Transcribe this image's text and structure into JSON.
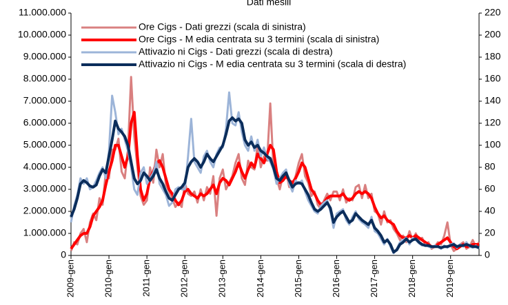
{
  "chart_data": {
    "type": "line",
    "title": "Dati mesili",
    "categories": [
      "2009-gen",
      null,
      null,
      null,
      null,
      null,
      null,
      null,
      null,
      null,
      null,
      null,
      "2010-gen",
      null,
      null,
      null,
      null,
      null,
      null,
      null,
      null,
      null,
      null,
      null,
      "2011-gen",
      null,
      null,
      null,
      null,
      null,
      null,
      null,
      null,
      null,
      null,
      null,
      "2012-gen",
      null,
      null,
      null,
      null,
      null,
      null,
      null,
      null,
      null,
      null,
      null,
      "2013-gen",
      null,
      null,
      null,
      null,
      null,
      null,
      null,
      null,
      null,
      null,
      null,
      "2014-gen",
      null,
      null,
      null,
      null,
      null,
      null,
      null,
      null,
      null,
      null,
      null,
      "2015-gen",
      null,
      null,
      null,
      null,
      null,
      null,
      null,
      null,
      null,
      null,
      null,
      "2016-gen",
      null,
      null,
      null,
      null,
      null,
      null,
      null,
      null,
      null,
      null,
      null,
      "2017-gen",
      null,
      null,
      null,
      null,
      null,
      null,
      null,
      null,
      null,
      null,
      null,
      "2018-gen",
      null,
      null,
      null,
      null,
      null,
      null,
      null,
      null,
      null,
      null,
      null,
      "2019-gen",
      null,
      null,
      null,
      null,
      null,
      null,
      null,
      null,
      null
    ],
    "ylim": [
      0,
      11000000
    ],
    "yticks": [
      {
        "value": 0,
        "label": "0"
      },
      {
        "value": 1000000,
        "label": "1.000.000"
      },
      {
        "value": 2000000,
        "label": "2.000.000"
      },
      {
        "value": 3000000,
        "label": "3.000.000"
      },
      {
        "value": 4000000,
        "label": "4.000.000"
      },
      {
        "value": 5000000,
        "label": "5.000.000"
      },
      {
        "value": 6000000,
        "label": "6.000.000"
      },
      {
        "value": 7000000,
        "label": "7.000.000"
      },
      {
        "value": 8000000,
        "label": "8.000.000"
      },
      {
        "value": 9000000,
        "label": "9.000.000"
      },
      {
        "value": 10000000,
        "label": "10.000.000"
      },
      {
        "value": 11000000,
        "label": "11.000.000"
      }
    ],
    "y2lim": [
      0,
      220
    ],
    "y2ticks": [
      0,
      20,
      40,
      60,
      80,
      100,
      120,
      140,
      160,
      180,
      200,
      220
    ],
    "legend": "upper left",
    "series": [
      {
        "name": "Ore Cigs - Dati grezzi (scala di sinistra)",
        "color": "#d98080",
        "width": 3,
        "values": [
          200000,
          600000,
          500000,
          1000000,
          1200000,
          600000,
          1500000,
          1900000,
          1600000,
          2600000,
          2300000,
          3800000,
          3500000,
          4800000,
          4800000,
          5300000,
          3800000,
          3500000,
          4800000,
          8100000,
          5400000,
          4000000,
          2700000,
          2300000,
          2500000,
          4000000,
          3300000,
          4800000,
          4000000,
          4600000,
          3200000,
          2900000,
          2600000,
          2200000,
          2400000,
          2200000,
          3300000,
          2800000,
          2700000,
          2900000,
          2400000,
          3000000,
          2500000,
          3100000,
          2800000,
          3600000,
          1800000,
          3500000,
          3900000,
          3000000,
          3300000,
          3600000,
          4200000,
          4600000,
          3500000,
          3200000,
          4300000,
          4000000,
          3900000,
          5000000,
          4000000,
          4500000,
          4300000,
          6900000,
          4000000,
          3500000,
          3000000,
          3600000,
          3800000,
          3100000,
          3200000,
          3600000,
          4200000,
          4600000,
          3600000,
          3300000,
          2700000,
          2900000,
          2300000,
          2100000,
          2500000,
          2800000,
          2500000,
          2900000,
          2900000,
          2500000,
          3000000,
          2400000,
          2600000,
          2500000,
          3100000,
          3200000,
          2600000,
          3200000,
          2600000,
          2800000,
          2000000,
          1900000,
          1400000,
          2000000,
          1500000,
          1600000,
          1200000,
          1000000,
          700000,
          900000,
          600000,
          1100000,
          700000,
          1000000,
          700000,
          800000,
          500000,
          600000,
          300000,
          400000,
          600000,
          500000,
          900000,
          1500000,
          500000,
          200000,
          300000,
          500000,
          600000,
          300000,
          400000,
          700000,
          400000,
          600000
        ]
      },
      {
        "name": "Ore Cigs - M edia centrata su 3 termini (scala di sinistra)",
        "color": "#ff0000",
        "width": 4,
        "values": [
          300000,
          500000,
          700000,
          900000,
          1000000,
          1000000,
          1300000,
          1800000,
          2000000,
          2200000,
          2500000,
          3200000,
          3800000,
          4300000,
          5000000,
          5000000,
          4500000,
          4000000,
          4500000,
          6000000,
          6500000,
          4500000,
          3000000,
          2500000,
          2800000,
          3500000,
          3800000,
          4200000,
          4300000,
          4000000,
          3500000,
          3000000,
          2800000,
          2500000,
          2300000,
          2500000,
          2900000,
          3000000,
          2800000,
          2700000,
          2600000,
          2800000,
          2700000,
          2800000,
          3000000,
          3200000,
          2800000,
          3300000,
          3500000,
          3400000,
          3200000,
          3500000,
          3800000,
          4200000,
          3800000,
          3500000,
          3900000,
          4200000,
          4000000,
          4600000,
          4400000,
          4200000,
          4600000,
          5000000,
          4800000,
          3800000,
          3300000,
          3400000,
          3600000,
          3400000,
          3300000,
          3500000,
          3800000,
          4200000,
          4000000,
          3500000,
          3000000,
          2800000,
          2500000,
          2300000,
          2400000,
          2600000,
          2700000,
          2700000,
          2700000,
          2700000,
          2800000,
          2600000,
          2500000,
          2600000,
          2800000,
          2900000,
          2800000,
          2900000,
          2800000,
          2600000,
          2200000,
          1900000,
          1700000,
          1800000,
          1600000,
          1500000,
          1400000,
          1100000,
          900000,
          800000,
          800000,
          900000,
          800000,
          900000,
          800000,
          700000,
          600000,
          500000,
          400000,
          400000,
          500000,
          600000,
          700000,
          800000,
          600000,
          400000,
          300000,
          400000,
          500000,
          400000,
          400000,
          500000,
          500000,
          500000
        ]
      },
      {
        "name": "Attivazio ni Cigs - Dati grezzi (scala di destra)",
        "color": "#9cb4d8",
        "width": 3,
        "axis": "y2",
        "values": [
          30,
          45,
          55,
          70,
          65,
          70,
          60,
          62,
          68,
          75,
          80,
          70,
          95,
          145,
          130,
          110,
          115,
          105,
          95,
          80,
          60,
          55,
          75,
          80,
          65,
          70,
          75,
          85,
          65,
          60,
          55,
          45,
          48,
          60,
          62,
          60,
          60,
          90,
          124,
          85,
          80,
          75,
          90,
          95,
          85,
          80,
          92,
          98,
          98,
          115,
          148,
          120,
          118,
          130,
          112,
          100,
          95,
          108,
          95,
          105,
          90,
          98,
          88,
          85,
          78,
          65,
          70,
          75,
          78,
          65,
          58,
          68,
          65,
          68,
          58,
          50,
          45,
          40,
          38,
          45,
          48,
          50,
          40,
          25,
          38,
          40,
          42,
          32,
          28,
          35,
          40,
          33,
          30,
          28,
          25,
          35,
          22,
          20,
          15,
          10,
          15,
          8,
          2,
          6,
          12,
          14,
          16,
          10,
          16,
          14,
          11,
          9,
          10,
          8,
          7,
          9,
          8,
          6,
          9,
          7,
          10,
          11,
          7,
          10,
          8,
          12,
          8,
          7,
          9,
          6
        ]
      },
      {
        "name": "Attivazio ni Cigs - M edia centrata su 3 termini (scala di destra)",
        "color": "#0b2d5b",
        "width": 4,
        "axis": "y2",
        "values": [
          35,
          42,
          52,
          65,
          68,
          66,
          63,
          62,
          64,
          72,
          78,
          75,
          90,
          105,
          122,
          115,
          112,
          108,
          100,
          85,
          70,
          65,
          68,
          75,
          72,
          68,
          72,
          78,
          70,
          65,
          58,
          52,
          50,
          55,
          60,
          62,
          66,
          80,
          85,
          88,
          85,
          80,
          85,
          92,
          88,
          85,
          90,
          95,
          100,
          110,
          122,
          125,
          122,
          124,
          120,
          105,
          100,
          103,
          98,
          100,
          95,
          93,
          90,
          88,
          80,
          70,
          68,
          72,
          75,
          68,
          62,
          65,
          66,
          65,
          60,
          55,
          48,
          42,
          40,
          42,
          45,
          48,
          43,
          30,
          35,
          38,
          40,
          35,
          30,
          32,
          38,
          35,
          32,
          30,
          28,
          32,
          25,
          22,
          18,
          12,
          14,
          10,
          3,
          5,
          10,
          12,
          15,
          12,
          14,
          15,
          12,
          10,
          9,
          9,
          8,
          8,
          8,
          7,
          8,
          8,
          9,
          10,
          8,
          9,
          9,
          10,
          9,
          8,
          8,
          7
        ]
      }
    ]
  }
}
